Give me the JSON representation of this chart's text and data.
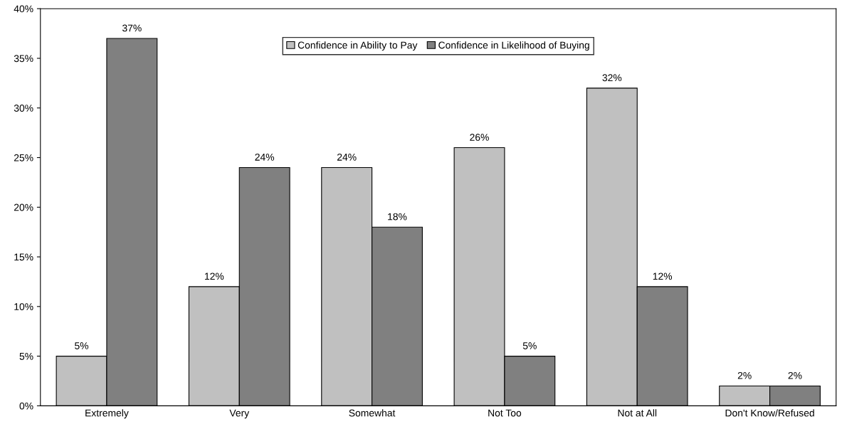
{
  "chart_data": {
    "type": "bar",
    "categories": [
      "Extremely",
      "Very",
      "Somewhat",
      "Not Too",
      "Not at All",
      "Don't Know/Refused"
    ],
    "series": [
      {
        "name": "Confidence in Ability to Pay",
        "color": "#c0c0c0",
        "values": [
          5,
          12,
          24,
          26,
          32,
          2
        ],
        "value_labels": [
          "5%",
          "12%",
          "24%",
          "26%",
          "32%",
          "2%"
        ]
      },
      {
        "name": "Confidence in Likelihood of Buying",
        "color": "#808080",
        "values": [
          37,
          24,
          18,
          5,
          12,
          2
        ],
        "value_labels": [
          "37%",
          "24%",
          "18%",
          "5%",
          "12%",
          "2%"
        ]
      }
    ],
    "ylim": [
      0,
      40
    ],
    "yticks": [
      {
        "value": 0,
        "label": "0%"
      },
      {
        "value": 5,
        "label": "5%"
      },
      {
        "value": 10,
        "label": "10%"
      },
      {
        "value": 15,
        "label": "15%"
      },
      {
        "value": 20,
        "label": "20%"
      },
      {
        "value": 25,
        "label": "25%"
      },
      {
        "value": 30,
        "label": "30%"
      },
      {
        "value": 35,
        "label": "35%"
      },
      {
        "value": 40,
        "label": "40%"
      }
    ],
    "grid": false,
    "legend": "top"
  }
}
